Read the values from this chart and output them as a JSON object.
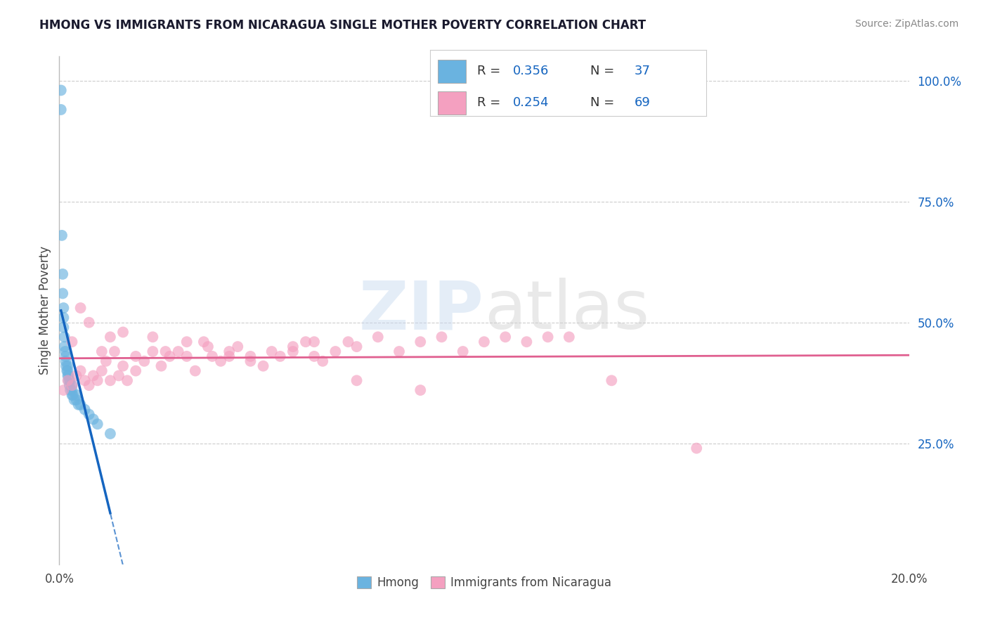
{
  "title": "HMONG VS IMMIGRANTS FROM NICARAGUA SINGLE MOTHER POVERTY CORRELATION CHART",
  "source": "Source: ZipAtlas.com",
  "ylabel": "Single Mother Poverty",
  "xlim": [
    0.0,
    0.2
  ],
  "ylim": [
    0.0,
    1.05
  ],
  "ytick_positions": [
    0.25,
    0.5,
    0.75,
    1.0
  ],
  "ytick_labels": [
    "25.0%",
    "50.0%",
    "75.0%",
    "100.0%"
  ],
  "background_color": "#ffffff",
  "hmong_color": "#6ab3e0",
  "nicaragua_color": "#f4a0c0",
  "hmong_line_color": "#1565c0",
  "nicaragua_line_color": "#e06090",
  "grid_color": "#cccccc",
  "hmong_x": [
    0.0004,
    0.0004,
    0.0006,
    0.0008,
    0.0008,
    0.001,
    0.001,
    0.001,
    0.0012,
    0.0012,
    0.0014,
    0.0015,
    0.0015,
    0.0016,
    0.0018,
    0.002,
    0.002,
    0.002,
    0.0022,
    0.0022,
    0.0024,
    0.0025,
    0.0026,
    0.003,
    0.003,
    0.003,
    0.0032,
    0.0035,
    0.004,
    0.004,
    0.0045,
    0.005,
    0.006,
    0.007,
    0.008,
    0.009,
    0.012
  ],
  "hmong_y": [
    0.98,
    0.94,
    0.68,
    0.6,
    0.56,
    0.53,
    0.51,
    0.49,
    0.47,
    0.45,
    0.44,
    0.43,
    0.42,
    0.41,
    0.4,
    0.41,
    0.4,
    0.39,
    0.39,
    0.38,
    0.37,
    0.38,
    0.36,
    0.37,
    0.36,
    0.35,
    0.35,
    0.34,
    0.35,
    0.34,
    0.33,
    0.33,
    0.32,
    0.31,
    0.3,
    0.29,
    0.27
  ],
  "nicaragua_x": [
    0.001,
    0.002,
    0.003,
    0.004,
    0.005,
    0.006,
    0.007,
    0.008,
    0.009,
    0.01,
    0.011,
    0.012,
    0.013,
    0.014,
    0.015,
    0.016,
    0.018,
    0.02,
    0.022,
    0.024,
    0.026,
    0.028,
    0.03,
    0.032,
    0.034,
    0.036,
    0.038,
    0.04,
    0.042,
    0.045,
    0.048,
    0.05,
    0.052,
    0.055,
    0.058,
    0.06,
    0.062,
    0.065,
    0.068,
    0.07,
    0.075,
    0.08,
    0.085,
    0.09,
    0.095,
    0.1,
    0.105,
    0.11,
    0.115,
    0.12,
    0.003,
    0.005,
    0.007,
    0.01,
    0.012,
    0.015,
    0.018,
    0.022,
    0.025,
    0.03,
    0.035,
    0.04,
    0.045,
    0.055,
    0.06,
    0.07,
    0.085,
    0.13,
    0.15
  ],
  "nicaragua_y": [
    0.36,
    0.38,
    0.37,
    0.39,
    0.4,
    0.38,
    0.37,
    0.39,
    0.38,
    0.4,
    0.42,
    0.38,
    0.44,
    0.39,
    0.41,
    0.38,
    0.4,
    0.42,
    0.44,
    0.41,
    0.43,
    0.44,
    0.43,
    0.4,
    0.46,
    0.43,
    0.42,
    0.43,
    0.45,
    0.42,
    0.41,
    0.44,
    0.43,
    0.44,
    0.46,
    0.43,
    0.42,
    0.44,
    0.46,
    0.45,
    0.47,
    0.44,
    0.46,
    0.47,
    0.44,
    0.46,
    0.47,
    0.46,
    0.47,
    0.47,
    0.46,
    0.53,
    0.5,
    0.44,
    0.47,
    0.48,
    0.43,
    0.47,
    0.44,
    0.46,
    0.45,
    0.44,
    0.43,
    0.45,
    0.46,
    0.38,
    0.36,
    0.38,
    0.24
  ]
}
